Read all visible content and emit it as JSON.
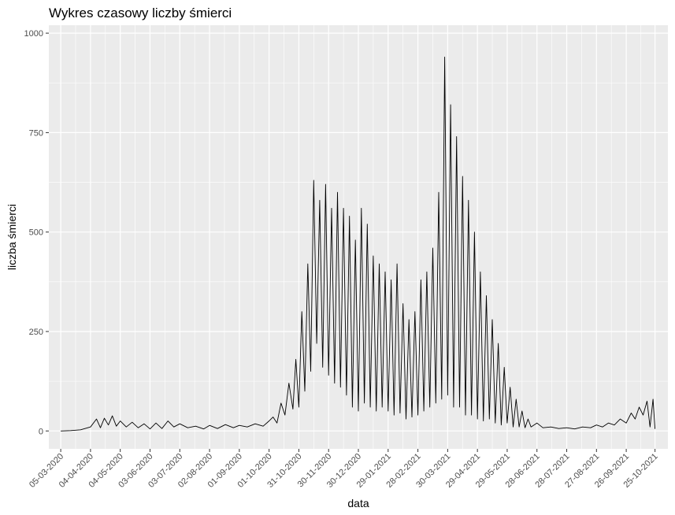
{
  "chart_data": {
    "type": "line",
    "title": "Wykres czasowy liczby śmierci",
    "xlabel": "data",
    "ylabel": "liczba śmierci",
    "ylim": [
      -45,
      1020
    ],
    "xlim": [
      "2020-02-22",
      "2021-11-07"
    ],
    "grid": true,
    "background": "#EBEBEB",
    "grid_color": "#FFFFFF",
    "line_color": "#000000",
    "y_ticks": [
      0,
      250,
      500,
      750,
      1000
    ],
    "x_ticks": [
      "05-03-2020",
      "04-04-2020",
      "04-05-2020",
      "03-06-2020",
      "03-07-2020",
      "02-08-2020",
      "01-09-2020",
      "01-10-2020",
      "31-10-2020",
      "30-11-2020",
      "30-12-2020",
      "29-01-2021",
      "28-02-2021",
      "30-03-2021",
      "29-04-2021",
      "29-05-2021",
      "28-06-2021",
      "28-07-2021",
      "27-08-2021",
      "26-09-2021",
      "25-10-2021"
    ],
    "series": [
      {
        "name": "",
        "x": [
          "2020-03-05",
          "2020-03-15",
          "2020-03-25",
          "2020-04-04",
          "2020-04-10",
          "2020-04-14",
          "2020-04-18",
          "2020-04-22",
          "2020-04-26",
          "2020-04-30",
          "2020-05-04",
          "2020-05-10",
          "2020-05-16",
          "2020-05-22",
          "2020-05-28",
          "2020-06-03",
          "2020-06-09",
          "2020-06-15",
          "2020-06-21",
          "2020-06-27",
          "2020-07-03",
          "2020-07-11",
          "2020-07-19",
          "2020-07-27",
          "2020-08-02",
          "2020-08-10",
          "2020-08-18",
          "2020-08-26",
          "2020-09-01",
          "2020-09-09",
          "2020-09-17",
          "2020-09-25",
          "2020-10-01",
          "2020-10-05",
          "2020-10-09",
          "2020-10-13",
          "2020-10-17",
          "2020-10-21",
          "2020-10-25",
          "2020-10-28",
          "2020-10-31",
          "2020-11-03",
          "2020-11-06",
          "2020-11-09",
          "2020-11-12",
          "2020-11-15",
          "2020-11-18",
          "2020-11-21",
          "2020-11-24",
          "2020-11-27",
          "2020-11-30",
          "2020-12-03",
          "2020-12-06",
          "2020-12-09",
          "2020-12-12",
          "2020-12-15",
          "2020-12-18",
          "2020-12-21",
          "2020-12-24",
          "2020-12-27",
          "2020-12-30",
          "2021-01-02",
          "2021-01-05",
          "2021-01-08",
          "2021-01-11",
          "2021-01-14",
          "2021-01-17",
          "2021-01-20",
          "2021-01-23",
          "2021-01-26",
          "2021-01-29",
          "2021-02-01",
          "2021-02-04",
          "2021-02-07",
          "2021-02-10",
          "2021-02-13",
          "2021-02-16",
          "2021-02-19",
          "2021-02-22",
          "2021-02-25",
          "2021-02-28",
          "2021-03-03",
          "2021-03-06",
          "2021-03-09",
          "2021-03-12",
          "2021-03-15",
          "2021-03-18",
          "2021-03-21",
          "2021-03-24",
          "2021-03-27",
          "2021-03-30",
          "2021-04-02",
          "2021-04-05",
          "2021-04-08",
          "2021-04-11",
          "2021-04-14",
          "2021-04-17",
          "2021-04-20",
          "2021-04-23",
          "2021-04-26",
          "2021-04-29",
          "2021-05-02",
          "2021-05-05",
          "2021-05-08",
          "2021-05-11",
          "2021-05-14",
          "2021-05-17",
          "2021-05-20",
          "2021-05-23",
          "2021-05-26",
          "2021-05-29",
          "2021-06-01",
          "2021-06-04",
          "2021-06-07",
          "2021-06-10",
          "2021-06-13",
          "2021-06-16",
          "2021-06-19",
          "2021-06-22",
          "2021-06-28",
          "2021-07-04",
          "2021-07-12",
          "2021-07-20",
          "2021-07-28",
          "2021-08-05",
          "2021-08-13",
          "2021-08-21",
          "2021-08-27",
          "2021-09-02",
          "2021-09-08",
          "2021-09-14",
          "2021-09-20",
          "2021-09-26",
          "2021-10-01",
          "2021-10-05",
          "2021-10-09",
          "2021-10-13",
          "2021-10-17",
          "2021-10-20",
          "2021-10-23",
          "2021-10-25"
        ],
        "values": [
          0,
          1,
          3,
          10,
          30,
          8,
          32,
          15,
          38,
          12,
          25,
          10,
          22,
          8,
          18,
          5,
          20,
          6,
          25,
          10,
          18,
          8,
          12,
          5,
          14,
          6,
          16,
          8,
          14,
          10,
          18,
          12,
          25,
          35,
          20,
          70,
          40,
          120,
          55,
          180,
          60,
          300,
          100,
          420,
          150,
          630,
          220,
          580,
          160,
          620,
          140,
          560,
          120,
          600,
          110,
          560,
          90,
          540,
          60,
          480,
          50,
          560,
          70,
          520,
          60,
          440,
          50,
          420,
          60,
          400,
          50,
          380,
          40,
          420,
          45,
          320,
          30,
          280,
          35,
          300,
          40,
          380,
          50,
          400,
          60,
          460,
          70,
          600,
          80,
          940,
          90,
          820,
          60,
          740,
          60,
          640,
          40,
          580,
          40,
          500,
          30,
          400,
          25,
          340,
          30,
          280,
          20,
          220,
          15,
          160,
          20,
          110,
          10,
          80,
          10,
          50,
          8,
          30,
          10,
          20,
          8,
          10,
          6,
          8,
          5,
          10,
          8,
          15,
          10,
          20,
          15,
          30,
          20,
          45,
          30,
          60,
          40,
          75,
          10,
          80,
          5
        ]
      }
    ]
  }
}
